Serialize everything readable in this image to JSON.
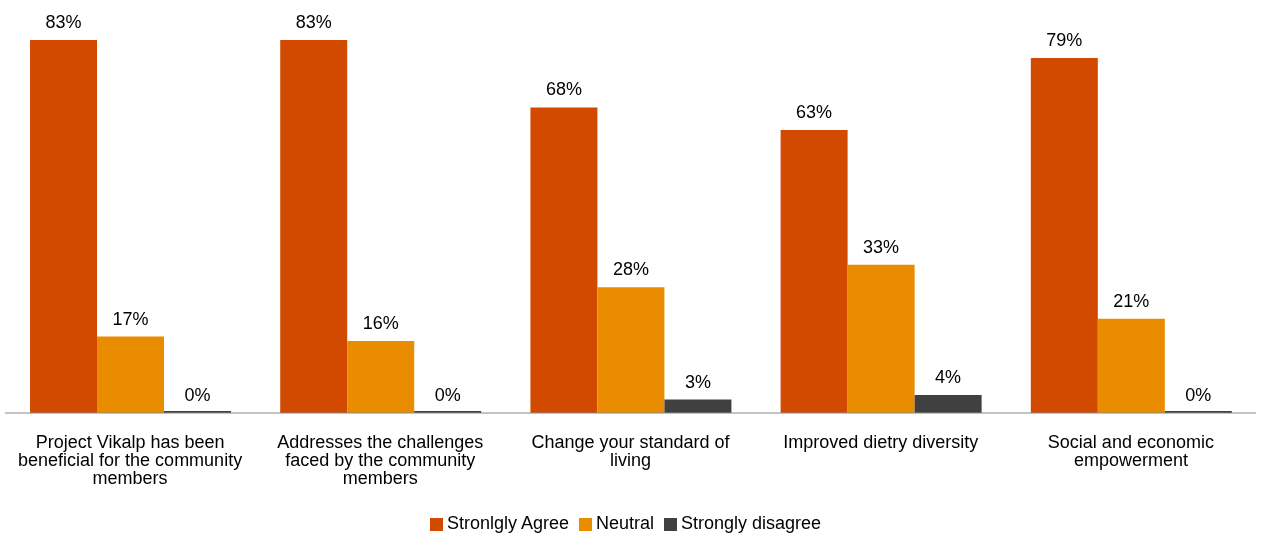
{
  "chart_data": {
    "type": "bar",
    "categories": [
      "Project Vikalp has been beneficial for the community members",
      "Addresses the challenges faced by the community members",
      "Change your standard of living",
      "Improved dietry diversity",
      "Social and economic empowerment"
    ],
    "series": [
      {
        "name": "Stronlgly Agree",
        "color": "#d24a00",
        "values": [
          83,
          83,
          68,
          63,
          79
        ],
        "value_labels": [
          "83%",
          "83%",
          "68%",
          "63%",
          "79%"
        ]
      },
      {
        "name": "Neutral",
        "color": "#e98c00",
        "values": [
          17,
          16,
          28,
          33,
          21
        ],
        "value_labels": [
          "17%",
          "16%",
          "28%",
          "33%",
          "21%"
        ]
      },
      {
        "name": "Strongly disagree",
        "color": "#404040",
        "values": [
          0,
          0,
          3,
          4,
          0
        ],
        "value_labels": [
          "0%",
          "0%",
          "3%",
          "4%",
          "0%"
        ]
      }
    ],
    "legend": "bottom",
    "grid": false
  }
}
